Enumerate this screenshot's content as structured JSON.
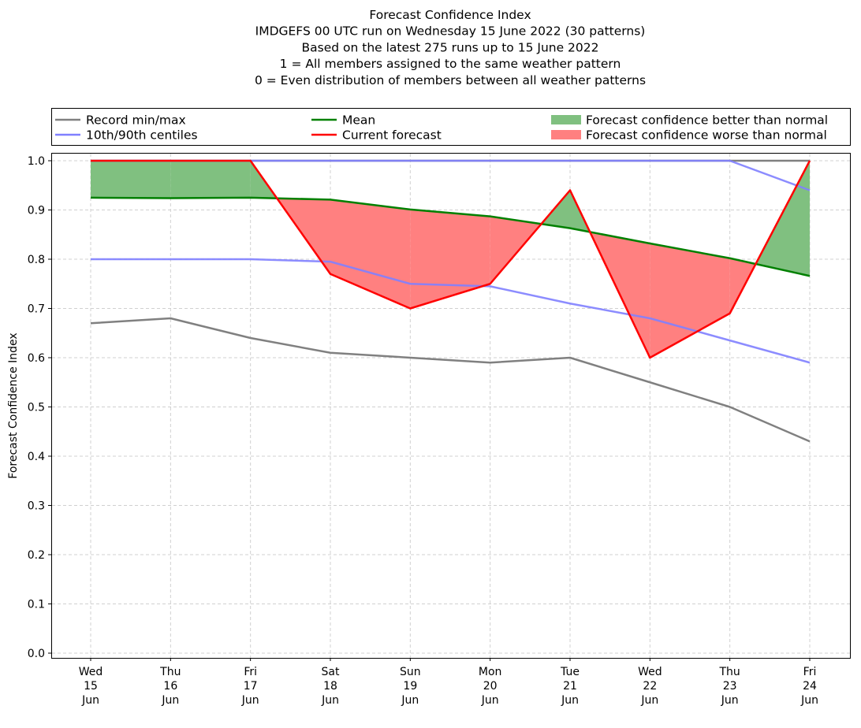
{
  "chart_data": {
    "type": "line",
    "title_lines": [
      "Forecast Confidence Index",
      "IMDGEFS 00 UTC run on Wednesday 15 June 2022 (30 patterns)",
      "Based on the latest 275 runs up to 15 June 2022",
      "1 = All members assigned to the same weather pattern",
      "0 = Even distribution of members between all weather patterns"
    ],
    "ylabel": "Forecast Confidence Index",
    "xlabel": "",
    "ylim": [
      0,
      1.0
    ],
    "yticks": [
      "0.0",
      "0.1",
      "0.2",
      "0.3",
      "0.4",
      "0.5",
      "0.6",
      "0.7",
      "0.8",
      "0.9",
      "1.0"
    ],
    "grid": true,
    "legend_position": "top (above plot)",
    "categories": [
      [
        "Wed",
        "15",
        "Jun"
      ],
      [
        "Thu",
        "16",
        "Jun"
      ],
      [
        "Fri",
        "17",
        "Jun"
      ],
      [
        "Sat",
        "18",
        "Jun"
      ],
      [
        "Sun",
        "19",
        "Jun"
      ],
      [
        "Mon",
        "20",
        "Jun"
      ],
      [
        "Tue",
        "21",
        "Jun"
      ],
      [
        "Wed",
        "22",
        "Jun"
      ],
      [
        "Thu",
        "23",
        "Jun"
      ],
      [
        "Fri",
        "24",
        "Jun"
      ]
    ],
    "series": [
      {
        "name": "Record min",
        "values": [
          0.67,
          0.68,
          0.64,
          0.61,
          0.6,
          0.59,
          0.6,
          0.55,
          0.5,
          0.43
        ],
        "color": "#808080"
      },
      {
        "name": "Record max",
        "values": [
          1.0,
          1.0,
          1.0,
          1.0,
          1.0,
          1.0,
          1.0,
          1.0,
          1.0,
          1.0
        ],
        "color": "#808080"
      },
      {
        "name": "10th centile",
        "values": [
          0.8,
          0.8,
          0.8,
          0.795,
          0.75,
          0.745,
          0.71,
          0.68,
          0.635,
          0.59
        ],
        "color": "#8080ff"
      },
      {
        "name": "90th centile",
        "values": [
          1.0,
          1.0,
          1.0,
          1.0,
          1.0,
          1.0,
          1.0,
          1.0,
          1.0,
          0.94
        ],
        "color": "#8080ff"
      },
      {
        "name": "Mean",
        "values": [
          0.925,
          0.924,
          0.925,
          0.921,
          0.901,
          0.887,
          0.863,
          0.832,
          0.802,
          0.766
        ],
        "color": "#008000"
      },
      {
        "name": "Current forecast",
        "values": [
          1.0,
          1.0,
          1.0,
          0.77,
          0.7,
          0.75,
          0.94,
          0.6,
          0.69,
          1.0
        ],
        "color": "#ff0000"
      }
    ],
    "legend": [
      {
        "label": "Record min/max",
        "kind": "line",
        "color": "#808080"
      },
      {
        "label": "10th/90th centiles",
        "kind": "line",
        "color": "#8080ff"
      },
      {
        "label": "Mean",
        "kind": "line",
        "color": "#008000"
      },
      {
        "label": "Current forecast",
        "kind": "line",
        "color": "#ff0000"
      },
      {
        "label": "Forecast confidence better than normal",
        "kind": "patch",
        "color": "#80c080"
      },
      {
        "label": "Forecast confidence worse than normal",
        "kind": "patch",
        "color": "#ff8080"
      }
    ]
  }
}
